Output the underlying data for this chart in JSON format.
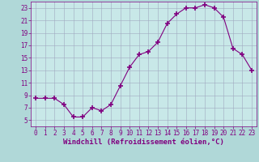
{
  "x": [
    0,
    1,
    2,
    3,
    4,
    5,
    6,
    7,
    8,
    9,
    10,
    11,
    12,
    13,
    14,
    15,
    16,
    17,
    18,
    19,
    20,
    21,
    22,
    23
  ],
  "y": [
    8.5,
    8.5,
    8.5,
    7.5,
    5.5,
    5.5,
    7.0,
    6.5,
    7.5,
    10.5,
    13.5,
    15.5,
    16.0,
    17.5,
    20.5,
    22.0,
    23.0,
    23.0,
    23.5,
    23.0,
    21.5,
    16.5,
    15.5,
    13.0
  ],
  "line_color": "#800080",
  "marker": "+",
  "marker_size": 4,
  "bg_color": "#b0d8d8",
  "plot_bg_color": "#c8e8e8",
  "grid_color": "#a0a8c0",
  "xlabel": "Windchill (Refroidissement éolien,°C)",
  "xlabel_color": "#800080",
  "xlim": [
    -0.5,
    23.5
  ],
  "ylim": [
    4,
    24
  ],
  "yticks": [
    5,
    7,
    9,
    11,
    13,
    15,
    17,
    19,
    21,
    23
  ],
  "xticks": [
    0,
    1,
    2,
    3,
    4,
    5,
    6,
    7,
    8,
    9,
    10,
    11,
    12,
    13,
    14,
    15,
    16,
    17,
    18,
    19,
    20,
    21,
    22,
    23
  ],
  "tick_color": "#800080",
  "tick_label_fontsize": 5.5,
  "xlabel_fontsize": 6.5
}
